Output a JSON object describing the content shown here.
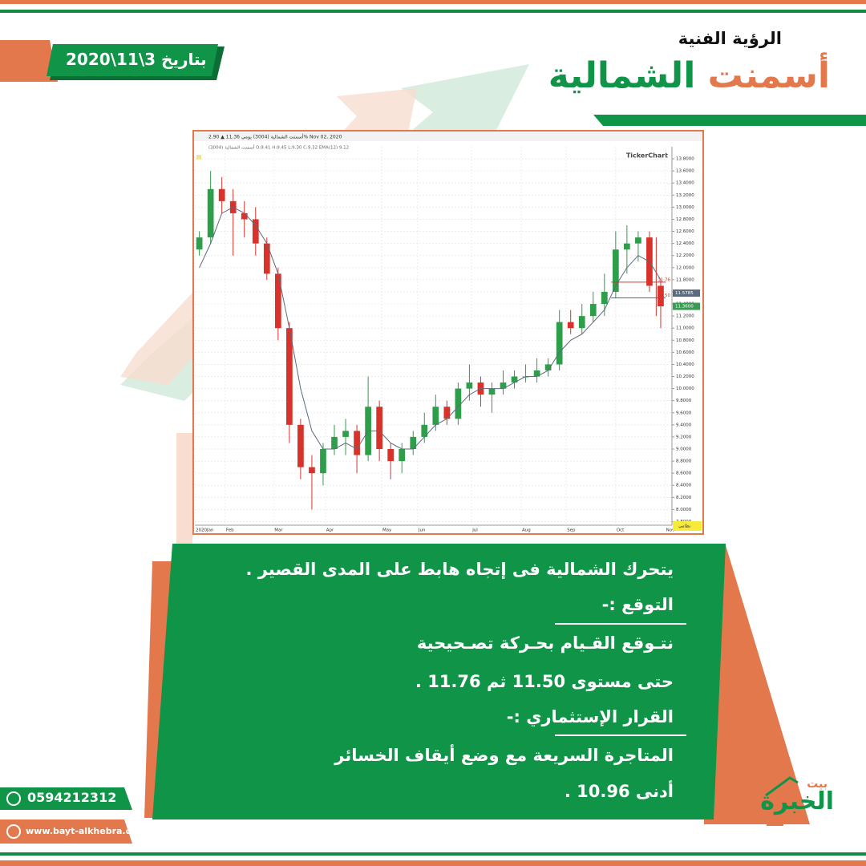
{
  "header": {
    "subtitle": "الرؤية الفنية",
    "title_orange": "أسمنت",
    "title_green": "الشمالية",
    "date": "بتاريخ 3\\11\\2020"
  },
  "chart_data": {
    "type": "candlestick",
    "info_line": "أسمنت الشمالية (3004) يومي 11.36 ▲ 2.90% Nov 02, 2020",
    "ohlc_line": "(3004) أسمنت الشمالية O:9.41 H:9.45 L:9.30 C:9.32 EMA(12) 9.12",
    "watermark": "TickerChart",
    "market_tag": "نظامي",
    "x": [
      2,
      7,
      12,
      17,
      22,
      27,
      32,
      37,
      42,
      47,
      52,
      57,
      62,
      67,
      72,
      77,
      82,
      87,
      92,
      97,
      102,
      107,
      112,
      117,
      122,
      127,
      132,
      137,
      142,
      147,
      152,
      157,
      162,
      167,
      172,
      177,
      182,
      187,
      192,
      197,
      202,
      207
    ],
    "open": [
      12.3,
      12.5,
      13.3,
      13.1,
      12.9,
      12.8,
      12.4,
      11.9,
      11.0,
      9.4,
      8.7,
      8.6,
      9.0,
      9.2,
      9.3,
      8.9,
      9.7,
      9.0,
      8.8,
      9.0,
      9.2,
      9.4,
      9.7,
      9.5,
      10.0,
      10.1,
      9.9,
      10.0,
      10.1,
      10.2,
      10.2,
      10.3,
      10.4,
      11.1,
      11.0,
      11.2,
      11.4,
      11.6,
      12.3,
      12.4,
      12.5,
      11.7
    ],
    "high": [
      12.6,
      13.6,
      13.5,
      13.3,
      13.1,
      13.0,
      12.5,
      12.0,
      11.1,
      9.5,
      8.9,
      9.1,
      9.4,
      9.5,
      9.4,
      10.2,
      9.8,
      9.1,
      9.1,
      9.3,
      9.6,
      9.9,
      9.8,
      10.1,
      10.4,
      10.2,
      10.1,
      10.3,
      10.3,
      10.4,
      10.5,
      10.5,
      11.3,
      11.3,
      11.4,
      11.6,
      11.9,
      12.6,
      12.7,
      12.6,
      12.6,
      11.8
    ],
    "low": [
      12.2,
      12.4,
      12.9,
      12.2,
      12.5,
      12.2,
      11.8,
      10.8,
      9.1,
      8.5,
      8.0,
      8.4,
      8.9,
      8.9,
      8.6,
      8.8,
      8.8,
      8.5,
      8.6,
      8.9,
      9.1,
      9.3,
      9.4,
      9.4,
      9.8,
      9.7,
      9.6,
      9.9,
      10.0,
      10.1,
      10.1,
      10.2,
      10.3,
      10.9,
      10.9,
      11.1,
      11.2,
      11.5,
      11.9,
      12.1,
      11.6,
      11.0
    ],
    "close": [
      12.5,
      13.3,
      13.1,
      12.9,
      12.8,
      12.4,
      11.9,
      11.0,
      9.4,
      8.7,
      8.6,
      9.0,
      9.2,
      9.3,
      8.9,
      9.7,
      9.0,
      8.8,
      9.0,
      9.2,
      9.4,
      9.7,
      9.5,
      10.0,
      10.1,
      9.9,
      10.0,
      10.1,
      10.2,
      10.2,
      10.3,
      10.4,
      11.1,
      11.0,
      11.2,
      11.4,
      11.6,
      12.3,
      12.4,
      12.5,
      11.7,
      11.36
    ],
    "up_color": "#2e9e4a",
    "down_color": "#d8322b",
    "ema": {
      "name": "EMA(12)",
      "color": "#5a6b7d",
      "values": [
        12.0,
        12.4,
        12.9,
        13.0,
        12.9,
        12.7,
        12.4,
        11.9,
        11.0,
        10.0,
        9.3,
        9.0,
        9.0,
        9.1,
        9.0,
        9.3,
        9.3,
        9.1,
        9.0,
        9.0,
        9.2,
        9.4,
        9.5,
        9.7,
        9.9,
        10.0,
        10.0,
        10.0,
        10.1,
        10.2,
        10.2,
        10.3,
        10.6,
        10.8,
        10.9,
        11.1,
        11.3,
        11.7,
        12.0,
        12.2,
        12.1,
        11.8
      ]
    },
    "levels": {
      "values": [
        11.76,
        11.5
      ],
      "value_labels": [
        "11.76",
        "11.50"
      ],
      "color": "#d8322b"
    },
    "axis_tags": [
      {
        "value": 11.5785,
        "label": "11.5785",
        "color": "#5a6b7d"
      },
      {
        "value": 11.36,
        "label": "11.3600",
        "color": "#3d9a55"
      }
    ],
    "xlim": [
      0,
      212
    ],
    "xticks": [
      {
        "value": 0,
        "label": "2020Jan"
      },
      {
        "value": 13.5,
        "label": "Feb"
      },
      {
        "value": 35,
        "label": "Mar"
      },
      {
        "value": 58,
        "label": "Apr"
      },
      {
        "value": 83,
        "label": "May"
      },
      {
        "value": 99,
        "label": "Jun"
      },
      {
        "value": 123,
        "label": "Jul"
      },
      {
        "value": 145,
        "label": "Aug"
      },
      {
        "value": 165,
        "label": "Sep"
      },
      {
        "value": 187,
        "label": "Oct"
      },
      {
        "value": 209,
        "label": "Nov"
      }
    ],
    "ylim": [
      7.74,
      14.0
    ],
    "yticks": [
      {
        "value": 7.8,
        "label": "7.8000"
      },
      {
        "value": 8.0,
        "label": "8.0000"
      },
      {
        "value": 8.2,
        "label": "8.2000"
      },
      {
        "value": 8.4,
        "label": "8.4000"
      },
      {
        "value": 8.6,
        "label": "8.6000"
      },
      {
        "value": 8.8,
        "label": "8.8000"
      },
      {
        "value": 9.0,
        "label": "9.0000"
      },
      {
        "value": 9.2,
        "label": "9.2000"
      },
      {
        "value": 9.4,
        "label": "9.4000"
      },
      {
        "value": 9.6,
        "label": "9.6000"
      },
      {
        "value": 9.8,
        "label": "9.8000"
      },
      {
        "value": 10.0,
        "label": "10.0000"
      },
      {
        "value": 10.2,
        "label": "10.2000"
      },
      {
        "value": 10.4,
        "label": "10.4000"
      },
      {
        "value": 10.6,
        "label": "10.6000"
      },
      {
        "value": 10.8,
        "label": "10.8000"
      },
      {
        "value": 11.0,
        "label": "11.0000"
      },
      {
        "value": 11.2,
        "label": "11.2000"
      },
      {
        "value": 11.4,
        "label": "11.4000"
      },
      {
        "value": 11.6,
        "label": "11.6000"
      },
      {
        "value": 11.8,
        "label": "11.8000"
      },
      {
        "value": 12.0,
        "label": "12.0000"
      },
      {
        "value": 12.2,
        "label": "12.2000"
      },
      {
        "value": 12.4,
        "label": "12.4000"
      },
      {
        "value": 12.6,
        "label": "12.6000"
      },
      {
        "value": 12.8,
        "label": "12.8000"
      },
      {
        "value": 13.0,
        "label": "13.0000"
      },
      {
        "value": 13.2,
        "label": "13.2000"
      },
      {
        "value": 13.4,
        "label": "13.4000"
      },
      {
        "value": 13.6,
        "label": "13.6000"
      },
      {
        "value": 13.8,
        "label": "13.8000"
      }
    ],
    "grid": true
  },
  "panel": {
    "lines": [
      "يتحرك الشمالية  فى إتجاه  هابط على المدى القصير .",
      "التوقع :-",
      "نتـوقع القـيام بحـركة تصـحيحية",
      "حتى مستوى 11.50 ثم 11.76 .",
      "القرار الإستثماري :-",
      "المتاجرة السريعة مع وضع أيقاف الخسائر",
      "أدنى 10.96 ."
    ]
  },
  "contact": {
    "phone": "0594212312",
    "website": "www.bayt-alkhebra.org"
  },
  "logo": {
    "top": "بيت",
    "name": "الخبرة"
  }
}
